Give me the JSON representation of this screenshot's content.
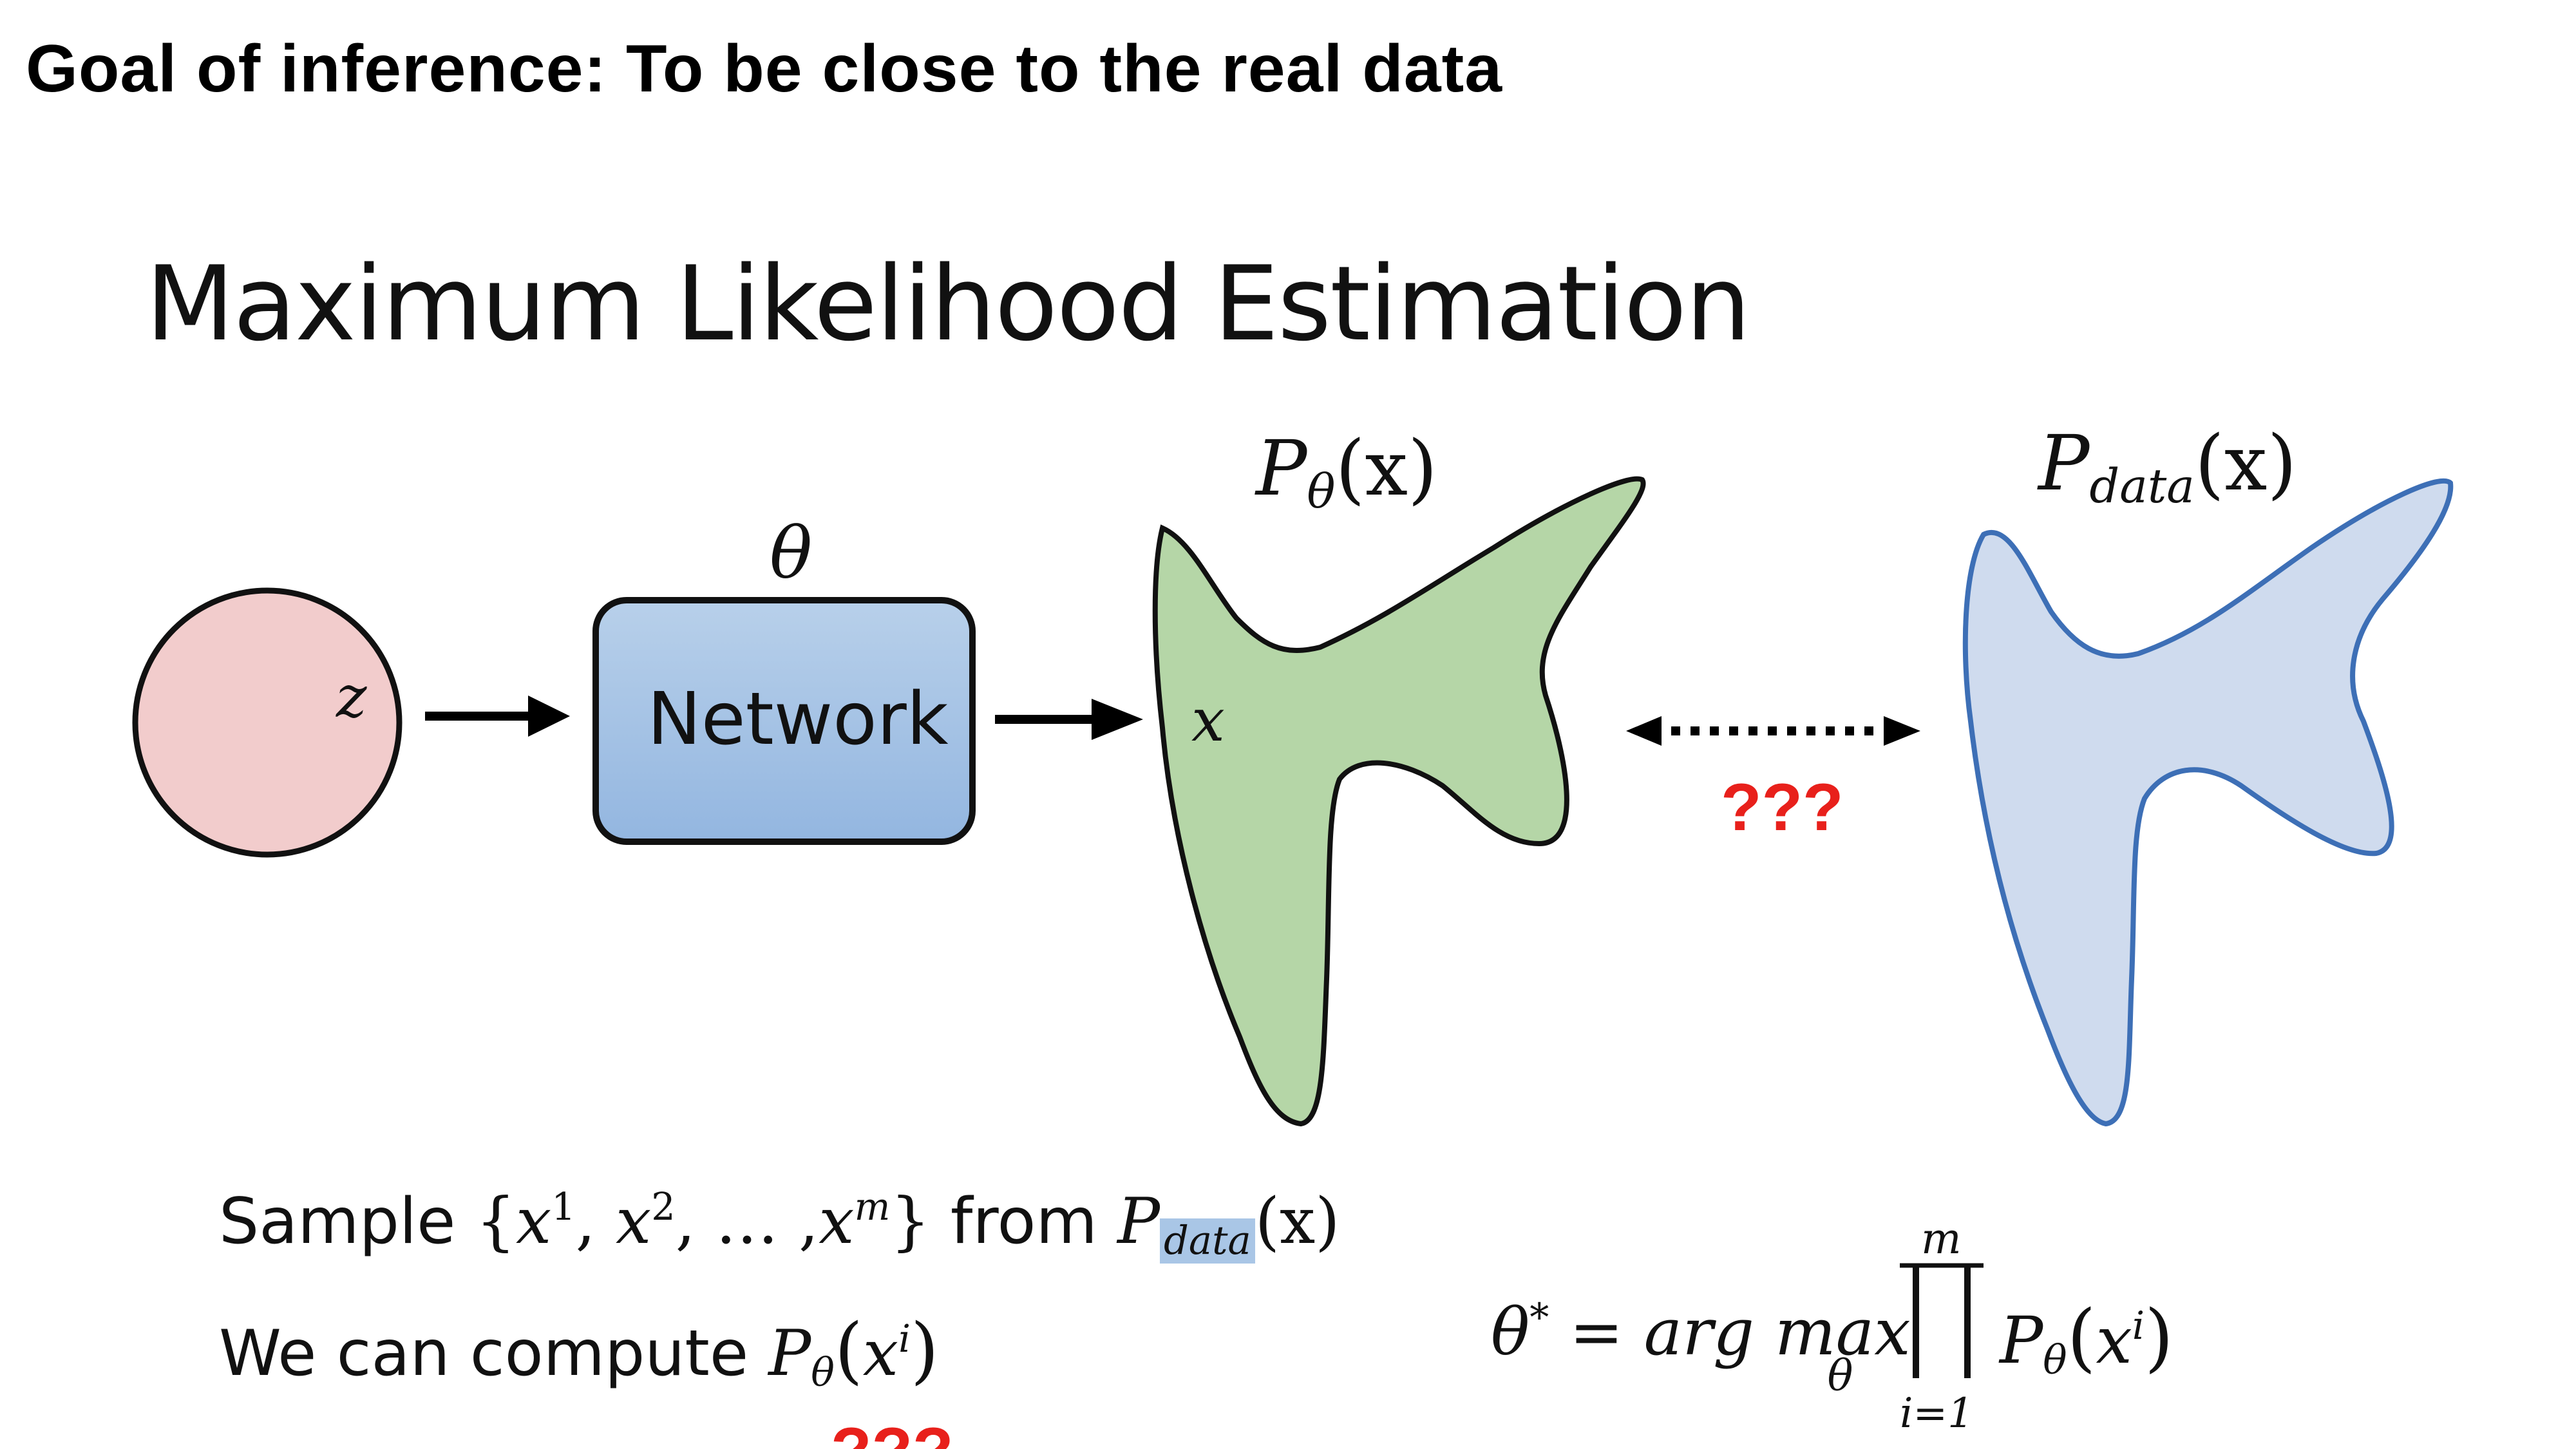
{
  "header": {
    "text": "Goal of inference:  To be close to the real data"
  },
  "slide": {
    "title": "Maximum Likelihood Estimation"
  },
  "diagram": {
    "noise_label": "z",
    "network_label": "Network",
    "theta_label": "θ",
    "model_dist": {
      "main": "P",
      "subscript": "θ",
      "arg": "(x)"
    },
    "data_dist": {
      "main": "P",
      "subscript": "data",
      "arg": "(x)"
    },
    "sample_point_label": "x",
    "question_marks": "???",
    "colors": {
      "noise_fill": "#f2cccc",
      "network_fill_top": "#b8d0ea",
      "network_fill_bottom": "#93b6e0",
      "model_fill": "#b5d6a7",
      "data_fill": "#cfdbee",
      "data_stroke": "#3d6fb6",
      "question_color": "#e8201b"
    }
  },
  "text_lines": {
    "sample": {
      "prefix": "Sample ",
      "set_open": "{",
      "x1": "x",
      "s1": "1",
      "x2": "x",
      "s2": "2",
      "dots": ", … ,",
      "xm": "x",
      "sm": "m",
      "set_close": "}",
      "from": " from ",
      "p": "P",
      "p_sub": "data",
      "p_arg": "(x)"
    },
    "compute": {
      "prefix": "We can compute ",
      "p": "P",
      "p_sub": "θ",
      "arg_open": "(",
      "x": "x",
      "sup": "i",
      "arg_close": ")"
    },
    "truncated_marks": "???"
  },
  "formula": {
    "lhs": "θ",
    "star": "*",
    "eq": " = ",
    "argmax": "arg max",
    "under": "θ",
    "prod_upper": "m",
    "prod_lower": "i=1",
    "p": "P",
    "p_sub": "θ",
    "arg_open": "(",
    "x": "x",
    "sup": "i",
    "arg_close": ")"
  }
}
